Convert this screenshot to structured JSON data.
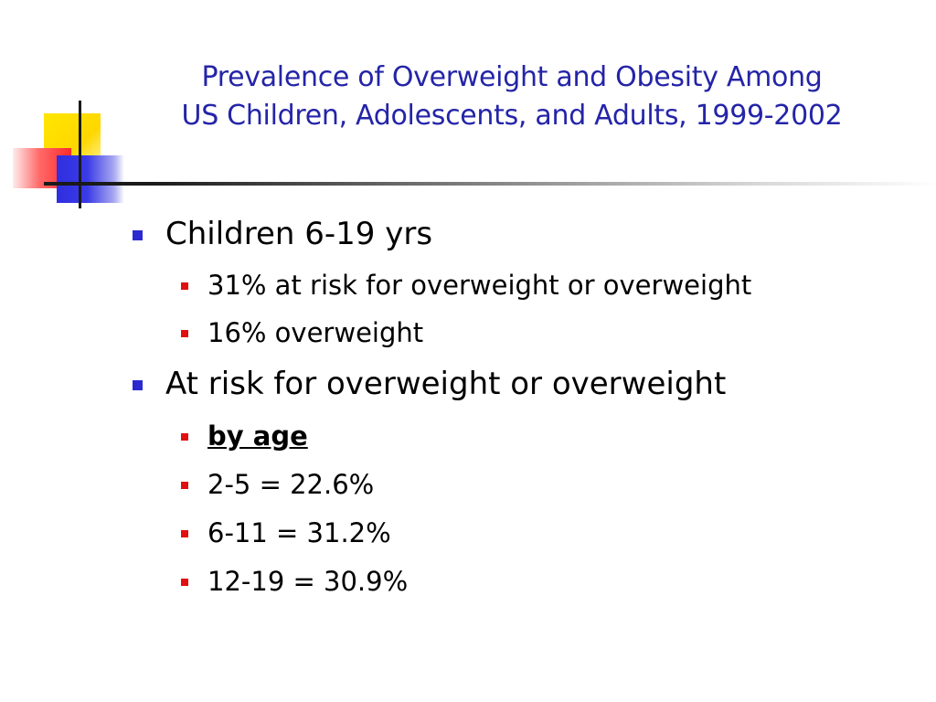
{
  "title": {
    "line1": "Prevalence of Overweight and  Obesity Among",
    "line2": "US Children, Adolescents, and Adults, 1999-2002"
  },
  "colors": {
    "title": "#2424a8",
    "level1_bullet": "#2a2ad0",
    "level2_bullet": "#e01010",
    "text": "#000000"
  },
  "content": {
    "section1": {
      "heading": "Children 6-19 yrs",
      "items": [
        "31% at risk for overweight or overweight",
        "16% overweight"
      ]
    },
    "section2": {
      "heading": "At risk for overweight or overweight",
      "items": [
        "by age",
        "2-5 = 22.6%",
        "6-11 = 31.2%",
        "12-19 = 30.9%"
      ]
    }
  }
}
